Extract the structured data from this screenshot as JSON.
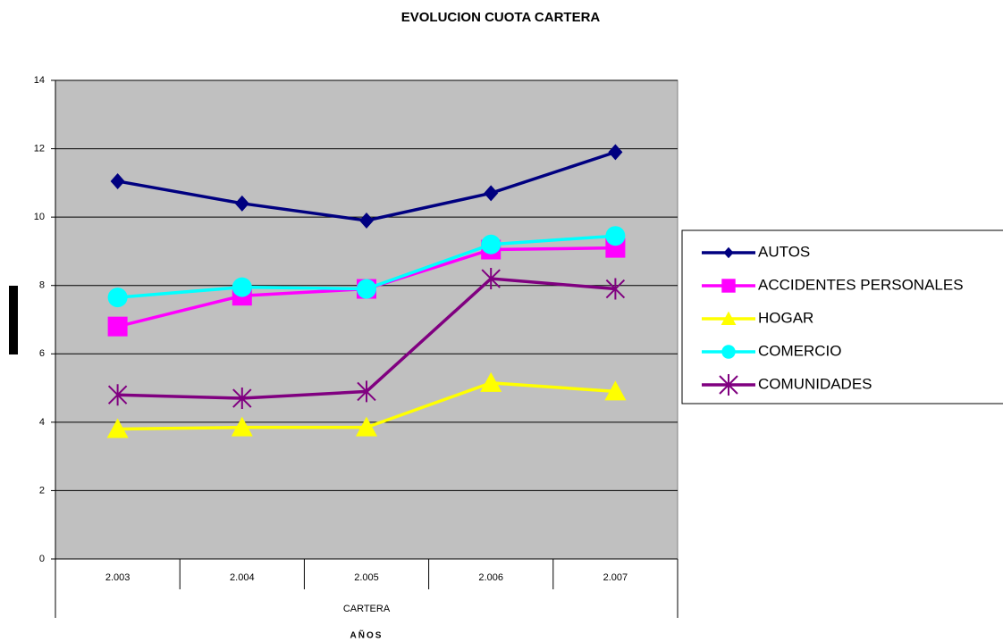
{
  "chart_data": {
    "type": "line",
    "title": "EVOLUCION CUOTA CARTERA",
    "categories": [
      "2.003",
      "2.004",
      "2.005",
      "2.006",
      "2.007"
    ],
    "category_group": "CARTERA",
    "x_label": "AÑOS",
    "series": [
      {
        "name": "AUTOS",
        "color": "#000080",
        "marker": "diamond",
        "values": [
          11.05,
          10.4,
          9.9,
          10.7,
          11.9
        ]
      },
      {
        "name": "ACCIDENTES PERSONALES",
        "color": "#ff00ff",
        "marker": "square",
        "values": [
          6.8,
          7.7,
          7.9,
          9.05,
          9.1
        ]
      },
      {
        "name": "HOGAR",
        "color": "#ffff00",
        "marker": "triangle",
        "values": [
          3.8,
          3.85,
          3.85,
          5.15,
          4.9
        ]
      },
      {
        "name": "COMERCIO",
        "color": "#00ffff",
        "marker": "circle",
        "values": [
          7.65,
          7.95,
          7.9,
          9.2,
          9.45
        ]
      },
      {
        "name": "COMUNIDADES",
        "color": "#800080",
        "marker": "asterisk",
        "values": [
          4.8,
          4.7,
          4.9,
          8.2,
          7.9
        ]
      }
    ],
    "ylim": [
      0,
      14
    ],
    "yticks": [
      0,
      2,
      4,
      6,
      8,
      10,
      12,
      14
    ],
    "grid": true,
    "legend": "right"
  }
}
